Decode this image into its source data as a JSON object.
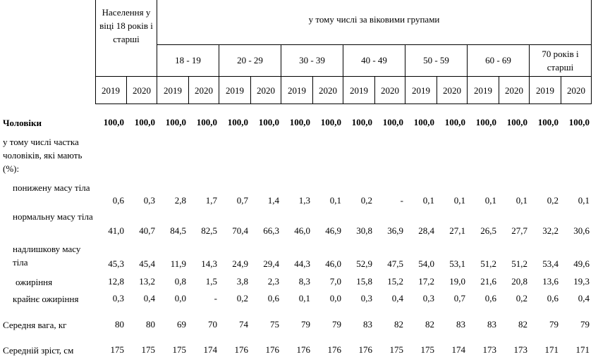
{
  "header": {
    "population": "Населення у віці 18 років і старші",
    "group_title": "у тому числі за віковими групами",
    "age_groups": [
      "18 - 19",
      "20 - 29",
      "30 - 39",
      "40 - 49",
      "50 - 59",
      "60 - 69",
      "70 років і старші"
    ],
    "years": [
      "2019",
      "2020",
      "2019",
      "2020",
      "2019",
      "2020",
      "2019",
      "2020",
      "2019",
      "2020",
      "2019",
      "2020",
      "2019",
      "2020",
      "2019",
      "2020"
    ]
  },
  "rows": [
    {
      "label": "Чоловіки",
      "values": [
        "100,0",
        "100,0",
        "100,0",
        "100,0",
        "100,0",
        "100,0",
        "100,0",
        "100,0",
        "100,0",
        "100,0",
        "100,0",
        "100,0",
        "100,0",
        "100,0",
        "100,0",
        "100,0"
      ]
    },
    {
      "label": "у тому числі частка чоловіків, які мають (%):"
    },
    {
      "label": "понижену масу тіла",
      "values": [
        "0,6",
        "0,3",
        "2,8",
        "1,7",
        "0,7",
        "1,4",
        "1,3",
        "0,1",
        "0,2",
        "-",
        "0,1",
        "0,1",
        "0,1",
        "0,1",
        "0,2",
        "0,1"
      ]
    },
    {
      "label": "нормальну масу тіла",
      "values": [
        "41,0",
        "40,7",
        "84,5",
        "82,5",
        "70,4",
        "66,3",
        "46,0",
        "46,9",
        "30,8",
        "36,9",
        "28,4",
        "27,1",
        "26,5",
        "27,7",
        "32,2",
        "30,6"
      ]
    },
    {
      "label": "надлишкову масу тіла",
      "values": [
        "45,3",
        "45,4",
        "11,9",
        "14,3",
        "24,9",
        "29,4",
        "44,3",
        "46,0",
        "52,9",
        "47,5",
        "54,0",
        "53,1",
        "51,2",
        "51,2",
        "53,4",
        "49,6"
      ]
    },
    {
      "label": "ожиріння",
      "values": [
        "12,8",
        "13,2",
        "0,8",
        "1,5",
        "3,8",
        "2,3",
        "8,3",
        "7,0",
        "15,8",
        "15,2",
        "17,2",
        "19,0",
        "21,6",
        "20,8",
        "13,6",
        "19,3"
      ]
    },
    {
      "label": "крайнє ожиріння",
      "values": [
        "0,3",
        "0,4",
        "0,0",
        "-",
        "0,2",
        "0,6",
        "0,1",
        "0,0",
        "0,3",
        "0,4",
        "0,3",
        "0,7",
        "0,6",
        "0,2",
        "0,6",
        "0,4"
      ]
    },
    {
      "label": "Середня вага, кг",
      "values": [
        "80",
        "80",
        "69",
        "70",
        "74",
        "75",
        "79",
        "79",
        "83",
        "82",
        "82",
        "83",
        "83",
        "82",
        "79",
        "79"
      ]
    },
    {
      "label": "Середній зріст, см",
      "values": [
        "175",
        "175",
        "175",
        "174",
        "176",
        "176",
        "176",
        "176",
        "176",
        "175",
        "175",
        "174",
        "173",
        "173",
        "171",
        "171"
      ]
    }
  ]
}
